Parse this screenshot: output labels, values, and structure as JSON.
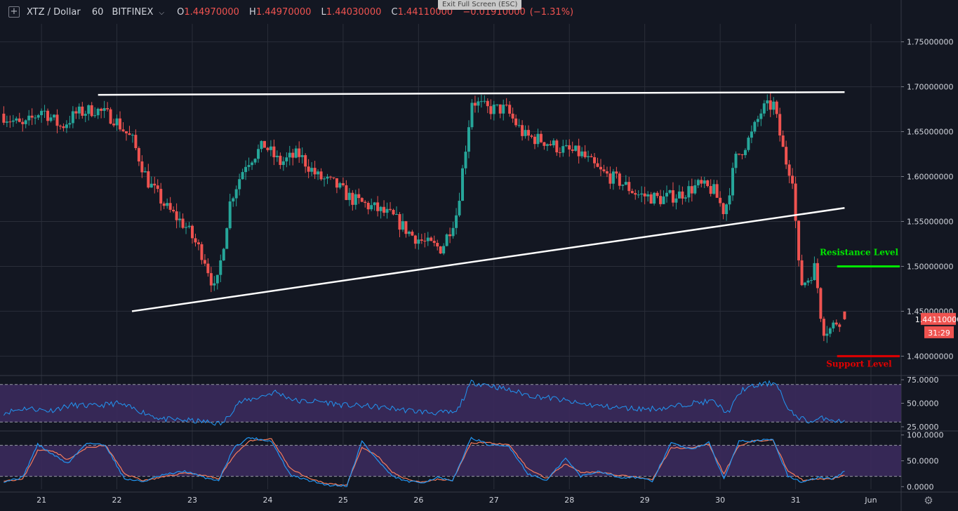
{
  "header": {
    "symbol": "XTZ / Dollar",
    "interval": "60",
    "exchange": "BITFINEX",
    "open_label": "O",
    "open": "1.44970000",
    "high_label": "H",
    "high": "1.44970000",
    "low_label": "L",
    "low": "1.44030000",
    "close_label": "C",
    "close": "1.44110000",
    "change": "−0.01910000",
    "change_pct": "(−1.31%)",
    "exit_fullscreen": "Exit Full Screen (ESC)"
  },
  "colors": {
    "background": "#131722",
    "grid": "#2a2e39",
    "up": "#26a69a",
    "down": "#ef5350",
    "trendline": "#ffffff",
    "resistance": "#00e600",
    "support": "#e00000",
    "rsi_line": "#2196f3",
    "band_fill": "#3b2a5c",
    "stoch_k": "#2196f3",
    "stoch_d": "#f57c5c"
  },
  "icons": {
    "add": "plus-square-icon",
    "settings": "gear-icon",
    "dropdown": "chevron-down-icon"
  },
  "chart_data": [
    {
      "type": "candlestick",
      "panel": "price",
      "ylim": [
        1.38,
        1.77
      ],
      "y_ticks": [
        "1.75000000",
        "1.70000000",
        "1.65000000",
        "1.60000000",
        "1.55000000",
        "1.50000000",
        "1.45000000",
        "1.40000000"
      ],
      "y_tick_values": [
        1.75,
        1.7,
        1.65,
        1.6,
        1.55,
        1.5,
        1.45,
        1.4
      ],
      "x_labels": [
        "21",
        "22",
        "23",
        "24",
        "25",
        "26",
        "27",
        "28",
        "29",
        "30",
        "31",
        "Jun"
      ],
      "x_label_days": [
        21,
        22,
        23,
        24,
        25,
        26,
        27,
        28,
        29,
        30,
        31,
        32
      ],
      "x_range_days": [
        20.45,
        32.4
      ],
      "anchors": [
        [
          20.5,
          1.67
        ],
        [
          20.8,
          1.655
        ],
        [
          21.05,
          1.675
        ],
        [
          21.3,
          1.655
        ],
        [
          21.5,
          1.67
        ],
        [
          21.75,
          1.675
        ],
        [
          22.0,
          1.665
        ],
        [
          22.25,
          1.64
        ],
        [
          22.45,
          1.595
        ],
        [
          22.7,
          1.565
        ],
        [
          22.95,
          1.545
        ],
        [
          23.2,
          1.51
        ],
        [
          23.35,
          1.47
        ],
        [
          23.55,
          1.575
        ],
        [
          23.75,
          1.615
        ],
        [
          24.0,
          1.635
        ],
        [
          24.2,
          1.615
        ],
        [
          24.45,
          1.625
        ],
        [
          24.7,
          1.6
        ],
        [
          24.95,
          1.59
        ],
        [
          25.15,
          1.575
        ],
        [
          25.45,
          1.565
        ],
        [
          25.7,
          1.555
        ],
        [
          25.95,
          1.535
        ],
        [
          26.15,
          1.525
        ],
        [
          26.35,
          1.52
        ],
        [
          26.55,
          1.56
        ],
        [
          26.75,
          1.685
        ],
        [
          26.95,
          1.675
        ],
        [
          27.2,
          1.675
        ],
        [
          27.45,
          1.645
        ],
        [
          27.7,
          1.64
        ],
        [
          27.95,
          1.63
        ],
        [
          28.2,
          1.625
        ],
        [
          28.45,
          1.605
        ],
        [
          28.7,
          1.595
        ],
        [
          28.95,
          1.58
        ],
        [
          29.25,
          1.575
        ],
        [
          29.5,
          1.58
        ],
        [
          29.75,
          1.59
        ],
        [
          29.95,
          1.585
        ],
        [
          30.1,
          1.56
        ],
        [
          30.25,
          1.62
        ],
        [
          30.45,
          1.645
        ],
        [
          30.6,
          1.675
        ],
        [
          30.75,
          1.68
        ],
        [
          30.9,
          1.62
        ],
        [
          31.0,
          1.6
        ],
        [
          31.1,
          1.48
        ],
        [
          31.2,
          1.485
        ],
        [
          31.3,
          1.5
        ],
        [
          31.4,
          1.43
        ],
        [
          31.5,
          1.43
        ],
        [
          31.6,
          1.44
        ],
        [
          31.65,
          1.441
        ]
      ],
      "last_candle": {
        "open": 1.4497,
        "high": 1.4497,
        "low": 1.4403,
        "close": 1.4411
      },
      "price_label": "1.44110000",
      "countdown": "31:29",
      "trendlines": [
        {
          "name": "upper-trendline",
          "from": [
            21.75,
            1.691
          ],
          "to": [
            31.65,
            1.694
          ]
        },
        {
          "name": "lower-trendline",
          "from": [
            22.2,
            1.45
          ],
          "to": [
            31.65,
            1.565
          ]
        }
      ],
      "levels": [
        {
          "name": "resistance",
          "label": "Resistance Level",
          "value": 1.5,
          "from_day": 31.55
        },
        {
          "name": "support",
          "label": "Support Level",
          "value": 1.4,
          "from_day": 31.55
        }
      ]
    },
    {
      "type": "line",
      "panel": "rsi",
      "ylim": [
        22,
        78
      ],
      "y_ticks": [
        "75.0000",
        "50.0000",
        "25.0000"
      ],
      "y_tick_values": [
        75,
        50,
        25
      ],
      "band": [
        30,
        70
      ],
      "series": [
        {
          "values": [
            [
              20.5,
              40
            ],
            [
              20.8,
              45
            ],
            [
              21.1,
              42
            ],
            [
              21.4,
              48
            ],
            [
              21.7,
              47
            ],
            [
              22.0,
              50
            ],
            [
              22.3,
              42
            ],
            [
              22.6,
              33
            ],
            [
              22.9,
              32
            ],
            [
              23.2,
              30
            ],
            [
              23.4,
              28
            ],
            [
              23.6,
              50
            ],
            [
              23.9,
              57
            ],
            [
              24.1,
              62
            ],
            [
              24.4,
              52
            ],
            [
              24.7,
              52
            ],
            [
              25.0,
              48
            ],
            [
              25.3,
              47
            ],
            [
              25.6,
              45
            ],
            [
              25.9,
              42
            ],
            [
              26.2,
              40
            ],
            [
              26.5,
              40
            ],
            [
              26.7,
              72
            ],
            [
              26.9,
              70
            ],
            [
              27.2,
              64
            ],
            [
              27.5,
              58
            ],
            [
              27.8,
              55
            ],
            [
              28.1,
              50
            ],
            [
              28.4,
              47
            ],
            [
              28.7,
              45
            ],
            [
              29.0,
              44
            ],
            [
              29.3,
              45
            ],
            [
              29.6,
              50
            ],
            [
              29.9,
              52
            ],
            [
              30.1,
              40
            ],
            [
              30.3,
              65
            ],
            [
              30.55,
              70
            ],
            [
              30.75,
              72
            ],
            [
              30.9,
              42
            ],
            [
              31.05,
              35
            ],
            [
              31.2,
              30
            ],
            [
              31.4,
              35
            ],
            [
              31.6,
              30
            ],
            [
              31.65,
              32
            ]
          ]
        }
      ]
    },
    {
      "type": "line",
      "panel": "stochastic",
      "ylim": [
        -5,
        105
      ],
      "y_ticks": [
        "100.0000",
        "50.0000",
        "0.0000"
      ],
      "y_tick_values": [
        100,
        50,
        0
      ],
      "band": [
        20,
        80
      ],
      "series": [
        {
          "name": "k",
          "values": [
            [
              20.5,
              10
            ],
            [
              20.75,
              18
            ],
            [
              20.95,
              82
            ],
            [
              21.15,
              62
            ],
            [
              21.35,
              45
            ],
            [
              21.6,
              85
            ],
            [
              21.85,
              80
            ],
            [
              22.1,
              15
            ],
            [
              22.35,
              10
            ],
            [
              22.6,
              22
            ],
            [
              22.9,
              30
            ],
            [
              23.15,
              18
            ],
            [
              23.35,
              12
            ],
            [
              23.55,
              75
            ],
            [
              23.75,
              95
            ],
            [
              24.05,
              88
            ],
            [
              24.3,
              22
            ],
            [
              24.55,
              12
            ],
            [
              24.8,
              3
            ],
            [
              25.05,
              2
            ],
            [
              25.25,
              88
            ],
            [
              25.45,
              52
            ],
            [
              25.65,
              20
            ],
            [
              25.85,
              10
            ],
            [
              26.05,
              8
            ],
            [
              26.25,
              18
            ],
            [
              26.45,
              10
            ],
            [
              26.7,
              95
            ],
            [
              26.95,
              80
            ],
            [
              27.2,
              78
            ],
            [
              27.45,
              25
            ],
            [
              27.7,
              12
            ],
            [
              27.95,
              55
            ],
            [
              28.15,
              20
            ],
            [
              28.4,
              30
            ],
            [
              28.65,
              18
            ],
            [
              28.9,
              18
            ],
            [
              29.1,
              10
            ],
            [
              29.35,
              85
            ],
            [
              29.6,
              72
            ],
            [
              29.85,
              85
            ],
            [
              30.05,
              15
            ],
            [
              30.25,
              90
            ],
            [
              30.45,
              88
            ],
            [
              30.7,
              92
            ],
            [
              30.9,
              20
            ],
            [
              31.1,
              8
            ],
            [
              31.3,
              18
            ],
            [
              31.5,
              15
            ],
            [
              31.65,
              30
            ]
          ]
        },
        {
          "name": "d",
          "values": [
            [
              20.5,
              12
            ],
            [
              20.75,
              14
            ],
            [
              20.95,
              70
            ],
            [
              21.15,
              70
            ],
            [
              21.35,
              52
            ],
            [
              21.6,
              75
            ],
            [
              21.85,
              80
            ],
            [
              22.1,
              25
            ],
            [
              22.35,
              12
            ],
            [
              22.6,
              18
            ],
            [
              22.9,
              27
            ],
            [
              23.15,
              22
            ],
            [
              23.35,
              15
            ],
            [
              23.55,
              60
            ],
            [
              23.75,
              88
            ],
            [
              24.05,
              92
            ],
            [
              24.3,
              35
            ],
            [
              24.55,
              15
            ],
            [
              24.8,
              6
            ],
            [
              25.05,
              3
            ],
            [
              25.25,
              75
            ],
            [
              25.45,
              60
            ],
            [
              25.65,
              28
            ],
            [
              25.85,
              14
            ],
            [
              26.05,
              9
            ],
            [
              26.25,
              14
            ],
            [
              26.45,
              12
            ],
            [
              26.7,
              85
            ],
            [
              26.95,
              85
            ],
            [
              27.2,
              80
            ],
            [
              27.45,
              35
            ],
            [
              27.7,
              16
            ],
            [
              27.95,
              45
            ],
            [
              28.15,
              28
            ],
            [
              28.4,
              28
            ],
            [
              28.65,
              22
            ],
            [
              28.9,
              18
            ],
            [
              29.1,
              13
            ],
            [
              29.35,
              75
            ],
            [
              29.6,
              75
            ],
            [
              29.85,
              82
            ],
            [
              30.05,
              25
            ],
            [
              30.25,
              80
            ],
            [
              30.45,
              88
            ],
            [
              30.7,
              90
            ],
            [
              30.9,
              30
            ],
            [
              31.1,
              12
            ],
            [
              31.3,
              15
            ],
            [
              31.5,
              15
            ],
            [
              31.65,
              22
            ]
          ]
        }
      ]
    }
  ]
}
